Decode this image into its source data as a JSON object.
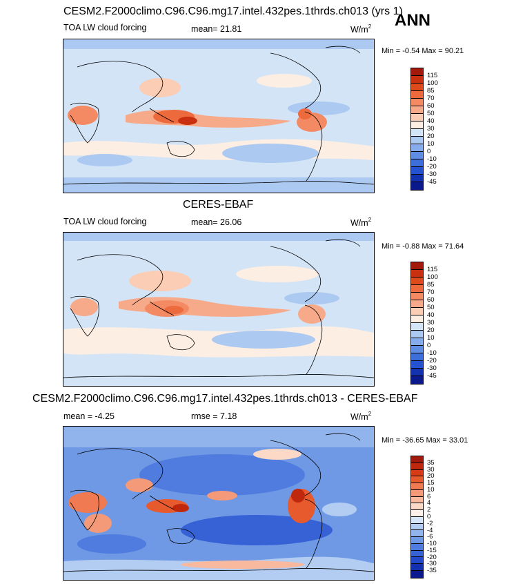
{
  "season": "ANN",
  "panels": [
    {
      "title": "CESM2.F2000climo.C96.C96.mg17.intel.432pes.1thrds.ch013 (yrs 1)",
      "left_label": "TOA LW cloud forcing",
      "center_label": "mean=  21.81",
      "units_base": "W/m",
      "units_exp": "2",
      "minmax": "Min =  -0.54 Max =  90.21"
    },
    {
      "title": "CERES-EBAF",
      "left_label": "TOA LW cloud forcing",
      "center_label": "mean=  26.06",
      "units_base": "W/m",
      "units_exp": "2",
      "minmax": "Min =  -0.88 Max =  71.64"
    },
    {
      "title": "CESM2.F2000climo.C96.C96.mg17.intel.432pes.1thrds.ch013 - CERES-EBAF",
      "left_label": "mean =  -4.25",
      "center_label": "rmse =  7.18",
      "units_base": "W/m",
      "units_exp": "2",
      "minmax": "Min = -36.65 Max =  33.01"
    }
  ],
  "colorbars": {
    "field": {
      "levels": [
        "115",
        "100",
        "85",
        "70",
        "60",
        "50",
        "40",
        "30",
        "20",
        "10",
        "0",
        "-10",
        "-20",
        "-30",
        "-45"
      ],
      "colors": [
        "#a11a0c",
        "#c9300f",
        "#dd4a1c",
        "#ec6a3c",
        "#f38a63",
        "#f7aa8a",
        "#fbcdb5",
        "#fdeee3",
        "#d3e4f7",
        "#abc9f1",
        "#86acec",
        "#5f8de3",
        "#3d6fdb",
        "#2552cf",
        "#1232b0",
        "#0a1a8c"
      ]
    },
    "diff": {
      "levels": [
        "35",
        "30",
        "20",
        "15",
        "10",
        "6",
        "4",
        "2",
        "0",
        "-2",
        "-4",
        "-6",
        "-10",
        "-15",
        "-20",
        "-30",
        "-35"
      ],
      "colors": [
        "#a11a0c",
        "#c0280d",
        "#d63d17",
        "#e65a2e",
        "#f07a51",
        "#f59a78",
        "#f9b99f",
        "#fcd8c7",
        "#fdf1e9",
        "#d6e6f8",
        "#b3cdf2",
        "#92b4ec",
        "#6f98e5",
        "#4f7cde",
        "#3762d5",
        "#2449c8",
        "#1330ae",
        "#0a1a8c"
      ]
    }
  }
}
